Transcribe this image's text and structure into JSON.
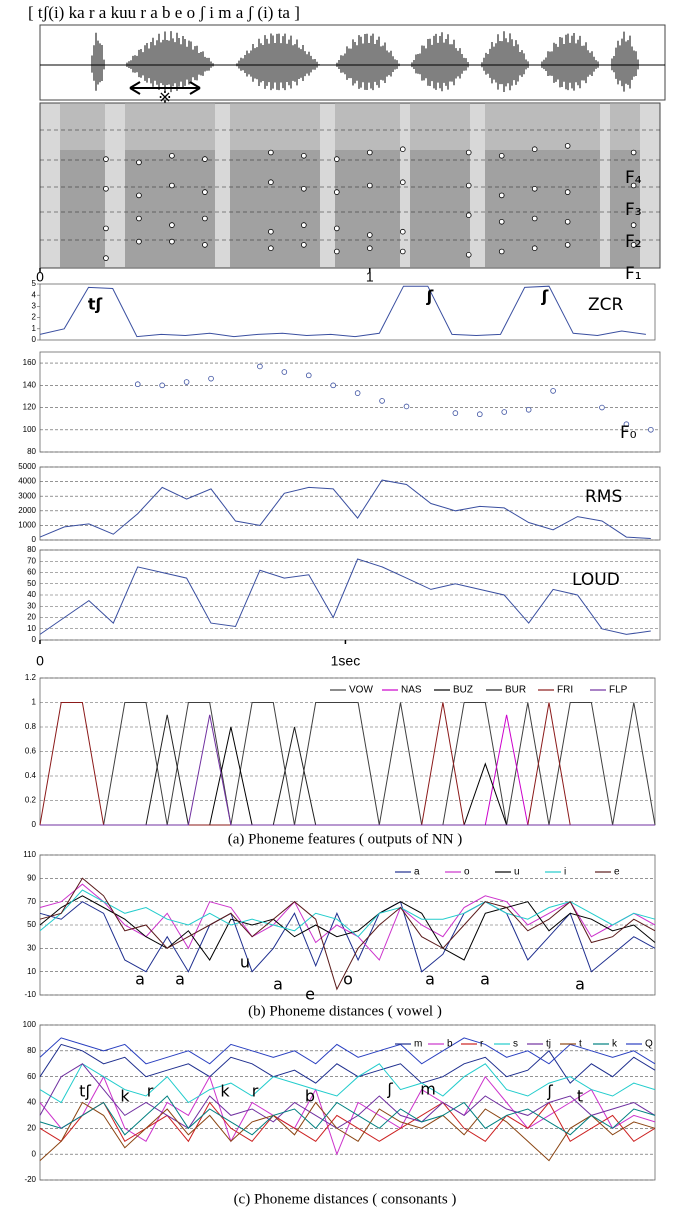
{
  "chart_data": [
    {
      "type": "scatter",
      "title": "[ tʃ(i) ka r a   kuu r a   b e o   ʃ i m a  ʃ (i) ta ]",
      "annotations": [
        "※"
      ],
      "x": [
        0.1,
        0.2,
        0.3,
        0.4,
        0.5,
        0.6,
        0.7,
        0.8,
        0.9,
        1.0,
        1.1,
        1.2,
        1.3,
        1.4,
        1.5,
        1.6,
        1.7,
        1.8
      ],
      "xlim": [
        0,
        1.88
      ],
      "xticks": [
        0,
        1
      ],
      "ylim": [
        0,
        5
      ],
      "series": [
        {
          "name": "F₁",
          "color": "#000000",
          "values": [
            null,
            0.3,
            0.8,
            0.8,
            0.7,
            null,
            0.6,
            0.7,
            0.5,
            0.6,
            0.5,
            null,
            0.4,
            0.5,
            0.6,
            0.7,
            null,
            0.7
          ]
        },
        {
          "name": "F₂",
          "color": "#000000",
          "values": [
            null,
            1.2,
            1.5,
            1.3,
            1.5,
            null,
            1.1,
            1.3,
            1.2,
            1.0,
            1.1,
            null,
            1.6,
            1.4,
            1.5,
            1.4,
            null,
            1.3
          ]
        },
        {
          "name": "F₃",
          "color": "#000000",
          "values": [
            null,
            2.4,
            2.2,
            2.5,
            2.3,
            null,
            2.6,
            2.4,
            2.3,
            2.5,
            2.6,
            null,
            2.5,
            2.2,
            2.4,
            2.3,
            null,
            2.5
          ]
        },
        {
          "name": "F₄",
          "color": "#000000",
          "values": [
            null,
            3.3,
            3.2,
            3.4,
            3.3,
            null,
            3.5,
            3.4,
            3.3,
            3.5,
            3.6,
            null,
            3.5,
            3.4,
            3.6,
            3.7,
            null,
            3.5
          ]
        }
      ]
    },
    {
      "type": "line",
      "label": "ZCR",
      "annotations": [
        "tʃ",
        "ʃ",
        "ʃ"
      ],
      "x": [
        0,
        0.08,
        0.16,
        0.24,
        0.32,
        0.4,
        0.48,
        0.56,
        0.64,
        0.72,
        0.8,
        0.88,
        0.96,
        1.04,
        1.12,
        1.2,
        1.28,
        1.36,
        1.44,
        1.52,
        1.6,
        1.68,
        1.76,
        1.84,
        1.92,
        2.0
      ],
      "xlim": [
        0,
        2.03
      ],
      "ylim": [
        0,
        5
      ],
      "yticks": [
        0,
        1,
        2,
        3,
        4,
        5
      ],
      "color": "#3a4fa0",
      "values": [
        0.5,
        1.0,
        4.7,
        4.6,
        0.3,
        0.5,
        0.4,
        0.6,
        0.3,
        0.5,
        0.6,
        0.4,
        0.5,
        0.3,
        0.6,
        4.8,
        4.8,
        0.5,
        0.4,
        0.5,
        4.7,
        4.8,
        0.6,
        0.4,
        0.8,
        0.5
      ]
    },
    {
      "type": "scatter",
      "label": "F₀",
      "x": [
        0,
        0.08,
        0.16,
        0.24,
        0.32,
        0.4,
        0.48,
        0.56,
        0.64,
        0.72,
        0.8,
        0.88,
        0.96,
        1.04,
        1.12,
        1.2,
        1.28,
        1.36,
        1.44,
        1.52,
        1.6,
        1.68,
        1.76,
        1.84,
        1.92,
        2.0
      ],
      "xlim": [
        0,
        2.03
      ],
      "ylim": [
        80,
        170
      ],
      "yticks": [
        80,
        100,
        120,
        140,
        160
      ],
      "grid": true,
      "color": "#3a4fa0",
      "values": [
        null,
        null,
        null,
        null,
        141,
        140,
        143,
        146,
        null,
        157,
        152,
        149,
        140,
        133,
        126,
        121,
        null,
        115,
        114,
        116,
        118,
        135,
        null,
        120,
        105,
        100
      ]
    },
    {
      "type": "line",
      "label": "RMS",
      "x": [
        0,
        0.08,
        0.16,
        0.24,
        0.32,
        0.4,
        0.48,
        0.56,
        0.64,
        0.72,
        0.8,
        0.88,
        0.96,
        1.04,
        1.12,
        1.2,
        1.28,
        1.36,
        1.44,
        1.52,
        1.6,
        1.68,
        1.76,
        1.84,
        1.92,
        2.0
      ],
      "xlim": [
        0,
        2.03
      ],
      "ylim": [
        0,
        5000
      ],
      "yticks": [
        0,
        1000,
        2000,
        3000,
        4000,
        5000
      ],
      "grid": true,
      "color": "#3a4fa0",
      "values": [
        200,
        900,
        1100,
        400,
        1800,
        3600,
        2800,
        3500,
        1300,
        1000,
        3200,
        3600,
        3500,
        1500,
        4100,
        3800,
        2500,
        2000,
        2300,
        2200,
        1200,
        700,
        1600,
        1300,
        200,
        100
      ]
    },
    {
      "type": "line",
      "label": "LOUD",
      "x": [
        0,
        0.08,
        0.16,
        0.24,
        0.32,
        0.4,
        0.48,
        0.56,
        0.64,
        0.72,
        0.8,
        0.88,
        0.96,
        1.04,
        1.12,
        1.2,
        1.28,
        1.36,
        1.44,
        1.52,
        1.6,
        1.68,
        1.76,
        1.84,
        1.92,
        2.0
      ],
      "xlim": [
        0,
        2.03
      ],
      "xticks": [
        {
          "value": 0,
          "label": "0"
        },
        {
          "value": 1,
          "label": "1sec"
        }
      ],
      "ylim": [
        0,
        80
      ],
      "yticks": [
        0,
        10,
        20,
        30,
        40,
        50,
        60,
        70,
        80
      ],
      "grid": true,
      "color": "#3a4fa0",
      "values": [
        5,
        20,
        35,
        15,
        65,
        60,
        55,
        15,
        12,
        62,
        55,
        58,
        20,
        72,
        65,
        55,
        45,
        50,
        45,
        40,
        15,
        45,
        40,
        10,
        5,
        8
      ]
    },
    {
      "type": "line",
      "caption": "(a) Phoneme features ( outputs of NN )",
      "ylim": [
        0,
        1.2
      ],
      "yticks": [
        0,
        0.2,
        0.4,
        0.6,
        0.8,
        1,
        1.2
      ],
      "grid": true,
      "legend": "top-right",
      "series": [
        {
          "name": "VOW",
          "color": "#404040",
          "values": [
            0,
            0,
            0,
            0,
            1,
            1,
            0,
            1,
            1,
            0,
            1,
            1,
            0,
            1,
            1,
            1,
            0,
            1,
            0,
            0,
            1,
            1,
            0,
            1,
            0,
            1,
            1,
            0,
            1,
            0
          ]
        },
        {
          "name": "NAS",
          "color": "#cc00cc",
          "values": [
            0,
            0,
            0,
            0,
            0,
            0,
            0,
            0,
            0,
            0,
            0,
            0,
            0,
            0,
            0,
            0,
            0,
            0,
            0,
            0,
            0,
            0,
            0.9,
            0,
            0,
            0,
            0,
            0,
            0,
            0
          ]
        },
        {
          "name": "BUZ",
          "color": "#000000",
          "values": [
            0,
            0,
            0,
            0,
            0,
            0,
            0,
            0,
            0,
            0.8,
            0,
            0,
            0,
            0,
            0,
            0,
            0,
            0,
            0,
            0,
            0,
            0.5,
            0,
            0,
            0,
            0,
            0,
            0,
            0,
            0
          ]
        },
        {
          "name": "BUR",
          "color": "#202020",
          "values": [
            0,
            0,
            0,
            0,
            0,
            0,
            0.9,
            0,
            0,
            0,
            0,
            0,
            0.8,
            0,
            0,
            0,
            0,
            0,
            0,
            0,
            0,
            0,
            0,
            0,
            0,
            0,
            0,
            0,
            0,
            0
          ]
        },
        {
          "name": "FRI",
          "color": "#8b1a1a",
          "values": [
            0,
            1,
            1,
            0,
            0,
            0,
            0,
            0,
            0,
            0,
            0,
            0,
            0,
            0,
            0,
            0,
            0,
            0,
            0,
            1,
            0,
            0,
            0,
            0,
            1,
            0,
            0,
            0,
            0,
            0
          ]
        },
        {
          "name": "FLP",
          "color": "#7030a0",
          "values": [
            0,
            0,
            0,
            0,
            0,
            0,
            0,
            0,
            0.9,
            0,
            0,
            0,
            0,
            0,
            0,
            0,
            0,
            0,
            0,
            0,
            0,
            0,
            0,
            0,
            0,
            0,
            0,
            0,
            0,
            0
          ]
        }
      ]
    },
    {
      "type": "line",
      "caption": "(b) Phoneme distances ( vowel )",
      "ylim": [
        -10,
        110
      ],
      "yticks": [
        -10,
        10,
        30,
        50,
        70,
        90,
        110
      ],
      "grid": true,
      "legend": "top-right",
      "annotations": [
        "a",
        "a",
        "u",
        "a",
        "e",
        "o",
        "a",
        "a",
        "a"
      ],
      "series": [
        {
          "name": "a",
          "color": "#1f2f8f",
          "values": [
            60,
            55,
            70,
            60,
            20,
            10,
            40,
            10,
            50,
            60,
            10,
            30,
            60,
            15,
            60,
            20,
            60,
            70,
            10,
            25,
            60,
            70,
            60,
            20,
            40,
            60,
            10,
            25,
            40,
            30
          ]
        },
        {
          "name": "o",
          "color": "#cc33cc",
          "values": [
            65,
            70,
            85,
            70,
            50,
            40,
            60,
            30,
            70,
            65,
            40,
            50,
            70,
            35,
            50,
            40,
            20,
            65,
            50,
            40,
            65,
            75,
            70,
            50,
            60,
            70,
            40,
            50,
            60,
            50
          ]
        },
        {
          "name": "u",
          "color": "#000000",
          "values": [
            50,
            65,
            75,
            65,
            55,
            40,
            30,
            45,
            20,
            55,
            50,
            55,
            40,
            50,
            40,
            45,
            60,
            70,
            60,
            30,
            20,
            60,
            65,
            70,
            45,
            60,
            55,
            45,
            50,
            35
          ]
        },
        {
          "name": "i",
          "color": "#22cccc",
          "values": [
            45,
            60,
            80,
            70,
            60,
            65,
            55,
            50,
            60,
            50,
            55,
            50,
            45,
            60,
            55,
            40,
            60,
            65,
            55,
            55,
            60,
            70,
            60,
            55,
            65,
            70,
            60,
            50,
            60,
            55
          ]
        },
        {
          "name": "e",
          "color": "#5a1a1a",
          "values": [
            55,
            60,
            90,
            75,
            45,
            50,
            30,
            40,
            50,
            60,
            40,
            55,
            70,
            55,
            -5,
            30,
            50,
            65,
            40,
            30,
            50,
            70,
            65,
            45,
            55,
            70,
            35,
            40,
            55,
            45
          ]
        }
      ]
    },
    {
      "type": "line",
      "caption": "(c) Phoneme distances ( consonants )",
      "ylim": [
        -20,
        100
      ],
      "yticks": [
        -20,
        0,
        20,
        40,
        60,
        80,
        100
      ],
      "grid": true,
      "legend": "top-right",
      "annotations": [
        "tʃ",
        "k",
        "r",
        "k",
        "r",
        "b",
        "ʃ",
        "m",
        "ʃ",
        "t"
      ],
      "series": [
        {
          "name": "m",
          "color": "#1f2f8f",
          "values": [
            60,
            85,
            80,
            70,
            75,
            60,
            65,
            70,
            60,
            75,
            70,
            60,
            65,
            55,
            70,
            60,
            65,
            70,
            55,
            60,
            70,
            75,
            60,
            65,
            80,
            55,
            70,
            60,
            75,
            65
          ]
        },
        {
          "name": "b",
          "color": "#cc33cc",
          "values": [
            40,
            20,
            30,
            60,
            20,
            10,
            40,
            30,
            60,
            10,
            40,
            30,
            20,
            50,
            0,
            40,
            30,
            20,
            50,
            40,
            30,
            60,
            40,
            20,
            30,
            40,
            50,
            20,
            30,
            25
          ]
        },
        {
          "name": "r",
          "color": "#cc2222",
          "values": [
            20,
            10,
            30,
            40,
            10,
            20,
            30,
            10,
            40,
            20,
            10,
            30,
            20,
            10,
            30,
            20,
            10,
            20,
            30,
            40,
            20,
            10,
            30,
            20,
            40,
            10,
            20,
            30,
            10,
            20
          ]
        },
        {
          "name": "s",
          "color": "#22cccc",
          "values": [
            50,
            40,
            70,
            60,
            50,
            45,
            60,
            40,
            50,
            55,
            45,
            60,
            55,
            50,
            45,
            60,
            70,
            50,
            55,
            45,
            60,
            70,
            50,
            45,
            55,
            60,
            50,
            45,
            55,
            50
          ]
        },
        {
          "name": "tj",
          "color": "#7030a0",
          "values": [
            30,
            60,
            70,
            50,
            30,
            40,
            30,
            20,
            45,
            30,
            35,
            25,
            40,
            30,
            20,
            30,
            45,
            30,
            25,
            40,
            30,
            45,
            35,
            30,
            40,
            45,
            30,
            35,
            40,
            30
          ]
        },
        {
          "name": "t",
          "color": "#8b4513",
          "values": [
            -5,
            10,
            40,
            30,
            5,
            20,
            35,
            15,
            30,
            10,
            25,
            30,
            15,
            40,
            20,
            10,
            35,
            25,
            20,
            30,
            15,
            35,
            25,
            10,
            -5,
            20,
            30,
            15,
            25,
            20
          ]
        },
        {
          "name": "k",
          "color": "#008080",
          "values": [
            25,
            20,
            30,
            40,
            15,
            30,
            45,
            20,
            35,
            25,
            15,
            30,
            35,
            20,
            40,
            30,
            20,
            35,
            25,
            30,
            40,
            20,
            30,
            35,
            25,
            15,
            30,
            20,
            35,
            30
          ]
        },
        {
          "name": "Q",
          "color": "#2a40c0",
          "values": [
            75,
            90,
            85,
            80,
            85,
            70,
            75,
            80,
            70,
            85,
            80,
            75,
            80,
            70,
            85,
            75,
            80,
            85,
            70,
            80,
            90,
            85,
            75,
            80,
            70,
            85,
            80,
            75,
            80,
            70
          ]
        }
      ]
    }
  ]
}
